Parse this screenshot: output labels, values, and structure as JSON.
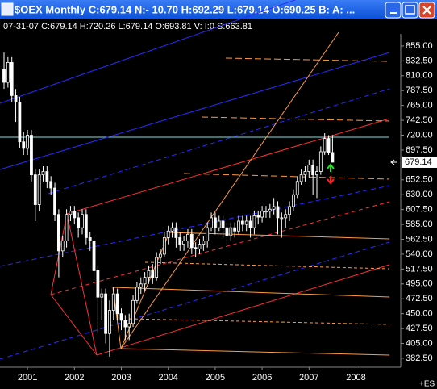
{
  "chart_data": {
    "type": "candlestick",
    "title": "$OEX Monthly C:679.14 N:- 10.70 H:692.29 L:679.14 O:690.25 B: A: ...",
    "info": "07-31-07   C:679.14   H:720.26   L:679.14   O:693.81    V:    I:0    S:663.81",
    "note": "+ES",
    "categories": [
      null,
      null,
      null,
      null,
      null,
      null,
      "2001",
      null,
      null,
      null,
      null,
      null,
      null,
      null,
      null,
      null,
      null,
      null,
      "2002",
      null,
      null,
      null,
      null,
      null,
      null,
      null,
      null,
      null,
      null,
      null,
      "2003",
      null,
      null,
      null,
      null,
      null,
      null,
      null,
      null,
      null,
      null,
      null,
      "2004",
      null,
      null,
      null,
      null,
      null,
      null,
      null,
      null,
      null,
      null,
      null,
      "2005",
      null,
      null,
      null,
      null,
      null,
      null,
      null,
      null,
      null,
      null,
      null,
      "2006",
      null,
      null,
      null,
      null,
      null,
      null,
      null,
      null,
      null,
      null,
      null,
      "2007",
      null,
      null,
      null,
      null,
      null,
      null,
      null,
      null,
      null,
      null,
      null,
      "2008"
    ],
    "open": [
      820,
      800,
      830,
      780,
      770,
      710,
      700,
      720,
      660,
      615,
      660,
      665,
      650,
      640,
      600,
      545,
      560,
      600,
      605,
      595,
      580,
      600,
      565,
      560,
      515,
      475,
      480,
      420,
      455,
      480,
      450,
      440,
      430,
      435,
      470,
      490,
      495,
      505,
      515,
      505,
      535,
      540,
      565,
      575,
      580,
      565,
      555,
      560,
      570,
      550,
      548,
      555,
      560,
      580,
      595,
      580,
      590,
      580,
      568,
      580,
      575,
      590,
      585,
      590,
      580,
      598,
      596,
      605,
      605,
      608,
      612,
      595,
      595,
      600,
      612,
      630,
      650,
      660,
      665,
      675,
      660,
      665,
      695,
      715,
      693.81,
      null,
      null,
      null,
      null,
      null,
      null
    ],
    "high": [
      845,
      838,
      838,
      790,
      778,
      725,
      728,
      728,
      668,
      668,
      673,
      673,
      658,
      648,
      608,
      568,
      608,
      613,
      613,
      603,
      608,
      608,
      573,
      568,
      523,
      488,
      488,
      470,
      490,
      488,
      458,
      448,
      450,
      478,
      498,
      505,
      513,
      523,
      525,
      543,
      548,
      573,
      583,
      588,
      588,
      573,
      568,
      578,
      578,
      558,
      563,
      568,
      588,
      603,
      603,
      598,
      598,
      588,
      588,
      588,
      598,
      598,
      598,
      598,
      606,
      606,
      613,
      613,
      616,
      625,
      620,
      603,
      608,
      620,
      638,
      658,
      668,
      673,
      683,
      683,
      673,
      703,
      723,
      720,
      720.26,
      null,
      null,
      null,
      null,
      null,
      null
    ],
    "low": [
      790,
      792,
      770,
      740,
      700,
      690,
      690,
      650,
      590,
      605,
      650,
      640,
      630,
      590,
      505,
      535,
      550,
      590,
      585,
      565,
      570,
      555,
      545,
      500,
      420,
      440,
      405,
      385,
      440,
      440,
      425,
      410,
      410,
      430,
      465,
      480,
      485,
      495,
      495,
      500,
      525,
      535,
      555,
      565,
      550,
      545,
      545,
      550,
      540,
      535,
      540,
      545,
      550,
      575,
      570,
      575,
      565,
      555,
      560,
      565,
      570,
      575,
      575,
      565,
      570,
      585,
      588,
      595,
      595,
      600,
      570,
      565,
      580,
      590,
      605,
      625,
      645,
      650,
      655,
      630,
      625,
      660,
      690,
      690,
      679.14,
      null,
      null,
      null,
      null,
      null,
      null
    ],
    "close": [
      800,
      830,
      780,
      770,
      710,
      700,
      720,
      660,
      615,
      660,
      665,
      650,
      640,
      600,
      545,
      560,
      600,
      605,
      595,
      580,
      600,
      565,
      560,
      515,
      475,
      480,
      420,
      455,
      480,
      450,
      440,
      430,
      435,
      470,
      490,
      495,
      505,
      515,
      505,
      535,
      540,
      565,
      575,
      580,
      565,
      555,
      560,
      570,
      550,
      548,
      555,
      560,
      580,
      595,
      580,
      590,
      580,
      568,
      580,
      575,
      590,
      585,
      590,
      580,
      598,
      596,
      605,
      605,
      608,
      612,
      595,
      595,
      600,
      612,
      630,
      650,
      660,
      665,
      675,
      660,
      665,
      695,
      715,
      693.81,
      679.14,
      null,
      null,
      null,
      null,
      null,
      null
    ],
    "color": "#ffffff",
    "ylim": [
      369,
      894
    ],
    "yticks": [
      {
        "value": 855,
        "label": "855.00"
      },
      {
        "value": 832.5,
        "label": "832.50"
      },
      {
        "value": 810,
        "label": "810.00"
      },
      {
        "value": 787.5,
        "label": "787.50"
      },
      {
        "value": 765,
        "label": "765.00"
      },
      {
        "value": 742.5,
        "label": "742.50"
      },
      {
        "value": 720,
        "label": "720.00"
      },
      {
        "value": 697.5,
        "label": "697.50"
      },
      {
        "value": 652.5,
        "label": "652.50"
      },
      {
        "value": 630,
        "label": "630.00"
      },
      {
        "value": 607.5,
        "label": "607.50"
      },
      {
        "value": 585,
        "label": "585.00"
      },
      {
        "value": 562.5,
        "label": "562.50"
      },
      {
        "value": 540,
        "label": "540.00"
      },
      {
        "value": 517.5,
        "label": "517.50"
      },
      {
        "value": 495,
        "label": "495.00"
      },
      {
        "value": 472.5,
        "label": "472.50"
      },
      {
        "value": 450,
        "label": "450.00"
      },
      {
        "value": 427.5,
        "label": "427.50"
      },
      {
        "value": 405,
        "label": "405.00"
      },
      {
        "value": 382.5,
        "label": "382.50"
      }
    ],
    "grid": false
  }
}
